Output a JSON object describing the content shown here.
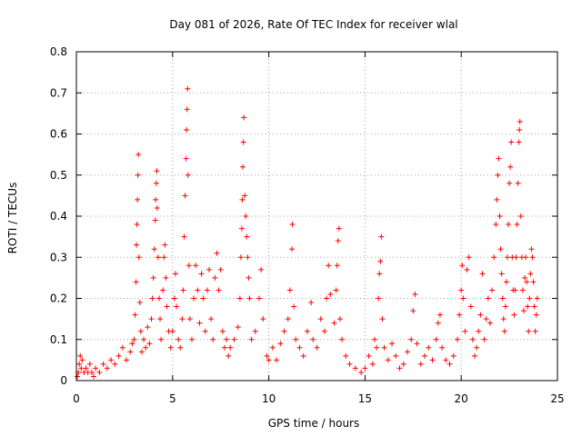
{
  "chart_data": {
    "type": "scatter",
    "title": "Day 081 of 2026, Rate Of TEC Index for receiver wlal",
    "xlabel": "GPS time / hours",
    "ylabel": "ROTI / TECUs",
    "xlim": [
      0,
      25
    ],
    "ylim": [
      0,
      0.8
    ],
    "xticks": [
      0,
      5,
      10,
      15,
      20,
      25
    ],
    "xtick_labels": [
      "0",
      "5",
      "10",
      "15",
      "20",
      "25"
    ],
    "yticks": [
      0,
      0.1,
      0.2,
      0.3,
      0.4,
      0.5,
      0.6,
      0.7,
      0.8
    ],
    "ytick_labels": [
      "0",
      "0.1",
      "0.2",
      "0.3",
      "0.4",
      "0.5",
      "0.6",
      "0.7",
      "0.8"
    ],
    "grid": true,
    "marker": "+",
    "series_color": "#ff0000",
    "grid_color": "#a0a0a0",
    "series": [
      {
        "name": "ROTI",
        "points": [
          [
            0.05,
            0.01
          ],
          [
            0.1,
            0.02
          ],
          [
            0.15,
            0.04
          ],
          [
            0.2,
            0.06
          ],
          [
            0.25,
            0.03
          ],
          [
            0.3,
            0.05
          ],
          [
            0.4,
            0.02
          ],
          [
            0.5,
            0.03
          ],
          [
            0.6,
            0.02
          ],
          [
            0.7,
            0.04
          ],
          [
            0.8,
            0.02
          ],
          [
            0.9,
            0.01
          ],
          [
            1.0,
            0.03
          ],
          [
            1.2,
            0.02
          ],
          [
            1.4,
            0.04
          ],
          [
            1.6,
            0.03
          ],
          [
            1.8,
            0.05
          ],
          [
            2.0,
            0.04
          ],
          [
            2.2,
            0.06
          ],
          [
            2.4,
            0.08
          ],
          [
            2.6,
            0.05
          ],
          [
            2.8,
            0.07
          ],
          [
            2.9,
            0.09
          ],
          [
            3.0,
            0.1
          ],
          [
            3.05,
            0.16
          ],
          [
            3.1,
            0.24
          ],
          [
            3.12,
            0.33
          ],
          [
            3.15,
            0.38
          ],
          [
            3.17,
            0.44
          ],
          [
            3.2,
            0.5
          ],
          [
            3.22,
            0.55
          ],
          [
            3.25,
            0.3
          ],
          [
            3.3,
            0.19
          ],
          [
            3.35,
            0.12
          ],
          [
            3.4,
            0.07
          ],
          [
            3.5,
            0.1
          ],
          [
            3.6,
            0.08
          ],
          [
            3.7,
            0.13
          ],
          [
            3.8,
            0.09
          ],
          [
            3.9,
            0.15
          ],
          [
            3.95,
            0.2
          ],
          [
            4.0,
            0.25
          ],
          [
            4.05,
            0.32
          ],
          [
            4.1,
            0.39
          ],
          [
            4.12,
            0.44
          ],
          [
            4.15,
            0.48
          ],
          [
            4.18,
            0.51
          ],
          [
            4.2,
            0.42
          ],
          [
            4.25,
            0.3
          ],
          [
            4.3,
            0.2
          ],
          [
            4.35,
            0.15
          ],
          [
            4.4,
            0.1
          ],
          [
            4.5,
            0.22
          ],
          [
            4.55,
            0.3
          ],
          [
            4.6,
            0.33
          ],
          [
            4.65,
            0.25
          ],
          [
            4.7,
            0.18
          ],
          [
            4.8,
            0.12
          ],
          [
            4.9,
            0.08
          ],
          [
            5.0,
            0.12
          ],
          [
            5.1,
            0.2
          ],
          [
            5.15,
            0.26
          ],
          [
            5.2,
            0.18
          ],
          [
            5.3,
            0.1
          ],
          [
            5.4,
            0.08
          ],
          [
            5.5,
            0.15
          ],
          [
            5.55,
            0.22
          ],
          [
            5.6,
            0.35
          ],
          [
            5.65,
            0.45
          ],
          [
            5.7,
            0.54
          ],
          [
            5.72,
            0.61
          ],
          [
            5.75,
            0.66
          ],
          [
            5.78,
            0.71
          ],
          [
            5.8,
            0.5
          ],
          [
            5.85,
            0.28
          ],
          [
            5.9,
            0.15
          ],
          [
            6.0,
            0.1
          ],
          [
            6.1,
            0.2
          ],
          [
            6.2,
            0.28
          ],
          [
            6.3,
            0.22
          ],
          [
            6.4,
            0.14
          ],
          [
            6.5,
            0.26
          ],
          [
            6.6,
            0.2
          ],
          [
            6.7,
            0.12
          ],
          [
            6.8,
            0.22
          ],
          [
            6.9,
            0.27
          ],
          [
            7.0,
            0.15
          ],
          [
            7.1,
            0.1
          ],
          [
            7.2,
            0.25
          ],
          [
            7.3,
            0.31
          ],
          [
            7.4,
            0.22
          ],
          [
            7.5,
            0.27
          ],
          [
            7.6,
            0.12
          ],
          [
            7.7,
            0.08
          ],
          [
            7.8,
            0.1
          ],
          [
            7.9,
            0.06
          ],
          [
            8.0,
            0.08
          ],
          [
            8.2,
            0.1
          ],
          [
            8.4,
            0.13
          ],
          [
            8.5,
            0.2
          ],
          [
            8.55,
            0.3
          ],
          [
            8.6,
            0.37
          ],
          [
            8.62,
            0.44
          ],
          [
            8.65,
            0.52
          ],
          [
            8.68,
            0.58
          ],
          [
            8.7,
            0.64
          ],
          [
            8.75,
            0.45
          ],
          [
            8.8,
            0.4
          ],
          [
            8.85,
            0.35
          ],
          [
            8.9,
            0.3
          ],
          [
            8.95,
            0.25
          ],
          [
            9.0,
            0.2
          ],
          [
            9.1,
            0.1
          ],
          [
            9.3,
            0.12
          ],
          [
            9.5,
            0.2
          ],
          [
            9.6,
            0.27
          ],
          [
            9.7,
            0.15
          ],
          [
            9.9,
            0.06
          ],
          [
            10.0,
            0.05
          ],
          [
            10.2,
            0.08
          ],
          [
            10.4,
            0.05
          ],
          [
            10.6,
            0.09
          ],
          [
            10.8,
            0.12
          ],
          [
            11.0,
            0.15
          ],
          [
            11.1,
            0.22
          ],
          [
            11.2,
            0.32
          ],
          [
            11.22,
            0.38
          ],
          [
            11.3,
            0.18
          ],
          [
            11.4,
            0.1
          ],
          [
            11.6,
            0.08
          ],
          [
            11.8,
            0.06
          ],
          [
            12.0,
            0.12
          ],
          [
            12.2,
            0.19
          ],
          [
            12.3,
            0.1
          ],
          [
            12.5,
            0.08
          ],
          [
            12.7,
            0.15
          ],
          [
            12.9,
            0.12
          ],
          [
            13.0,
            0.2
          ],
          [
            13.1,
            0.28
          ],
          [
            13.2,
            0.21
          ],
          [
            13.4,
            0.14
          ],
          [
            13.5,
            0.22
          ],
          [
            13.55,
            0.28
          ],
          [
            13.6,
            0.34
          ],
          [
            13.65,
            0.37
          ],
          [
            13.7,
            0.15
          ],
          [
            13.8,
            0.1
          ],
          [
            14.0,
            0.06
          ],
          [
            14.2,
            0.04
          ],
          [
            14.5,
            0.03
          ],
          [
            14.8,
            0.02
          ],
          [
            15.0,
            0.03
          ],
          [
            15.2,
            0.06
          ],
          [
            15.4,
            0.04
          ],
          [
            15.5,
            0.1
          ],
          [
            15.6,
            0.08
          ],
          [
            15.7,
            0.2
          ],
          [
            15.75,
            0.26
          ],
          [
            15.8,
            0.29
          ],
          [
            15.85,
            0.35
          ],
          [
            15.9,
            0.15
          ],
          [
            16.0,
            0.08
          ],
          [
            16.2,
            0.05
          ],
          [
            16.4,
            0.09
          ],
          [
            16.6,
            0.06
          ],
          [
            16.8,
            0.03
          ],
          [
            17.0,
            0.04
          ],
          [
            17.2,
            0.07
          ],
          [
            17.4,
            0.1
          ],
          [
            17.5,
            0.17
          ],
          [
            17.6,
            0.21
          ],
          [
            17.7,
            0.09
          ],
          [
            17.9,
            0.04
          ],
          [
            18.1,
            0.06
          ],
          [
            18.3,
            0.08
          ],
          [
            18.5,
            0.05
          ],
          [
            18.7,
            0.1
          ],
          [
            18.8,
            0.14
          ],
          [
            18.9,
            0.16
          ],
          [
            19.0,
            0.08
          ],
          [
            19.2,
            0.05
          ],
          [
            19.4,
            0.04
          ],
          [
            19.6,
            0.06
          ],
          [
            19.8,
            0.1
          ],
          [
            19.9,
            0.16
          ],
          [
            20.0,
            0.22
          ],
          [
            20.05,
            0.28
          ],
          [
            20.1,
            0.2
          ],
          [
            20.2,
            0.12
          ],
          [
            20.3,
            0.27
          ],
          [
            20.4,
            0.3
          ],
          [
            20.5,
            0.18
          ],
          [
            20.6,
            0.1
          ],
          [
            20.7,
            0.06
          ],
          [
            20.8,
            0.08
          ],
          [
            20.9,
            0.12
          ],
          [
            21.0,
            0.16
          ],
          [
            21.1,
            0.26
          ],
          [
            21.2,
            0.1
          ],
          [
            21.3,
            0.15
          ],
          [
            21.4,
            0.2
          ],
          [
            21.5,
            0.14
          ],
          [
            21.6,
            0.22
          ],
          [
            21.7,
            0.3
          ],
          [
            21.8,
            0.38
          ],
          [
            21.85,
            0.44
          ],
          [
            21.9,
            0.5
          ],
          [
            21.95,
            0.54
          ],
          [
            22.0,
            0.4
          ],
          [
            22.05,
            0.32
          ],
          [
            22.1,
            0.26
          ],
          [
            22.15,
            0.2
          ],
          [
            22.2,
            0.15
          ],
          [
            22.25,
            0.12
          ],
          [
            22.3,
            0.18
          ],
          [
            22.35,
            0.24
          ],
          [
            22.4,
            0.3
          ],
          [
            22.45,
            0.38
          ],
          [
            22.5,
            0.48
          ],
          [
            22.55,
            0.52
          ],
          [
            22.6,
            0.58
          ],
          [
            22.65,
            0.3
          ],
          [
            22.7,
            0.22
          ],
          [
            22.75,
            0.16
          ],
          [
            22.8,
            0.22
          ],
          [
            22.85,
            0.3
          ],
          [
            22.9,
            0.38
          ],
          [
            22.95,
            0.48
          ],
          [
            23.0,
            0.58
          ],
          [
            23.02,
            0.61
          ],
          [
            23.05,
            0.63
          ],
          [
            23.1,
            0.4
          ],
          [
            23.15,
            0.3
          ],
          [
            23.2,
            0.22
          ],
          [
            23.25,
            0.17
          ],
          [
            23.3,
            0.25
          ],
          [
            23.35,
            0.3
          ],
          [
            23.4,
            0.24
          ],
          [
            23.45,
            0.18
          ],
          [
            23.5,
            0.12
          ],
          [
            23.55,
            0.2
          ],
          [
            23.6,
            0.26
          ],
          [
            23.65,
            0.32
          ],
          [
            23.7,
            0.3
          ],
          [
            23.75,
            0.24
          ],
          [
            23.8,
            0.18
          ],
          [
            23.85,
            0.12
          ],
          [
            23.9,
            0.16
          ],
          [
            23.95,
            0.2
          ]
        ]
      }
    ]
  }
}
